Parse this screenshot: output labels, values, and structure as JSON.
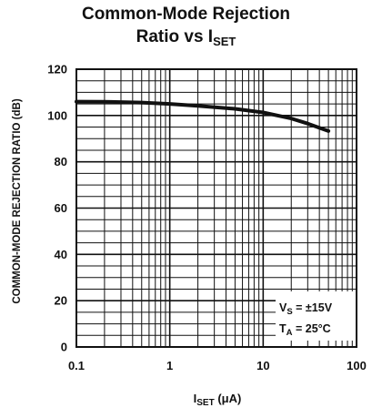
{
  "title": {
    "line1": "Common-Mode Rejection",
    "line2_main": "Ratio vs I",
    "line2_sub": "SET"
  },
  "chart_data": {
    "type": "line",
    "xscale": "log",
    "xlim": [
      0.1,
      100
    ],
    "ylim": [
      0,
      120
    ],
    "xticks": [
      "0.1",
      "1",
      "10",
      "100"
    ],
    "yticks": [
      "0",
      "20",
      "40",
      "60",
      "80",
      "100",
      "120"
    ],
    "xlabel_main": "I",
    "xlabel_sub": "SET",
    "xlabel_unit": " (μA)",
    "ylabel": "COMMON-MODE REJECTION RATIO (dB)",
    "grid": true,
    "series": [
      {
        "x": [
          0.1,
          0.2,
          0.5,
          1,
          2,
          5,
          10,
          20,
          30,
          50
        ],
        "y": [
          106,
          105.9,
          105.6,
          105,
          104.2,
          102.9,
          101.3,
          98.7,
          96.5,
          93.3
        ]
      }
    ],
    "annotations": {
      "vs_main": "V",
      "vs_sub": "S",
      "vs_value": " = ±15V",
      "ta_main": "T",
      "ta_sub": "A",
      "ta_value": " = 25°C"
    }
  },
  "colors": {
    "ink": "#111111",
    "background": "#ffffff"
  }
}
